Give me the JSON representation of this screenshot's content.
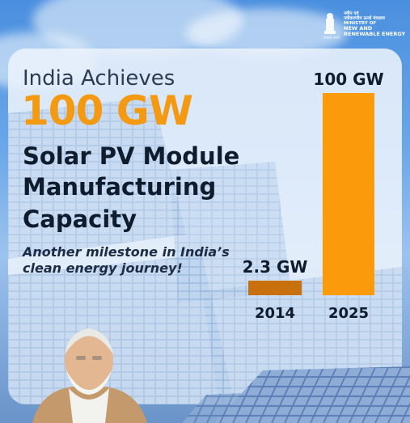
{
  "headline": {
    "intro": "India Achieves",
    "highlight": "100 GW",
    "line1": "Solar PV Module",
    "line2": "Manufacturing",
    "line3": "Capacity"
  },
  "tagline": {
    "line1": "Another milestone in India’s",
    "line2": "clean energy journey!"
  },
  "logo": {
    "hindi1": "नवीन एवं",
    "hindi2": "नवीकरणीय ऊर्जा मंत्रालय",
    "line1": "MINISTRY OF",
    "line2": "NEW AND",
    "line3": "RENEWABLE ENERGY"
  },
  "colors": {
    "accent": "#f39a12",
    "bar2014": "#c8700e",
    "bar2025": "#fb9a0a",
    "text_dark": "#0f1c2e"
  },
  "chart_data": {
    "type": "bar",
    "categories": [
      "2014",
      "2025"
    ],
    "values": [
      2.3,
      100
    ],
    "value_labels": [
      "2.3 GW",
      "100 GW"
    ],
    "title": "",
    "xlabel": "",
    "ylabel": "",
    "ylim": [
      0,
      100
    ],
    "grid": false
  }
}
